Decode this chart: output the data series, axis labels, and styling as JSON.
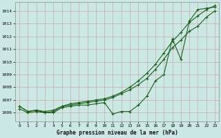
{
  "title": "Graphe pression niveau de la mer (hPa)",
  "bg_color": "#cce8e4",
  "grid_color": "#c8a8a8",
  "line_color": "#1a5c1a",
  "xlim": [
    -0.5,
    23.5
  ],
  "ylim": [
    1005.3,
    1014.7
  ],
  "yticks": [
    1006,
    1007,
    1008,
    1009,
    1010,
    1011,
    1012,
    1013,
    1014
  ],
  "xticks": [
    0,
    1,
    2,
    3,
    4,
    5,
    6,
    7,
    8,
    9,
    10,
    11,
    12,
    13,
    14,
    15,
    16,
    17,
    18,
    19,
    20,
    21,
    22,
    23
  ],
  "series1": [
    1006.3,
    1006.0,
    1006.1,
    1006.0,
    1006.0,
    1006.4,
    1006.5,
    1006.6,
    1006.6,
    1006.7,
    1006.8,
    1005.9,
    1006.1,
    1006.1,
    1006.6,
    1007.3,
    1008.5,
    1009.0,
    1011.8,
    1010.2,
    1013.2,
    1014.1,
    1014.2,
    1014.3
  ],
  "series2": [
    1006.5,
    1006.1,
    1006.2,
    1006.0,
    1006.1,
    1006.5,
    1006.6,
    1006.7,
    1006.8,
    1006.9,
    1007.0,
    1007.2,
    1007.5,
    1007.8,
    1008.2,
    1008.7,
    1009.4,
    1010.2,
    1011.1,
    1011.7,
    1012.4,
    1012.8,
    1013.5,
    1014.0
  ],
  "series3": [
    1006.5,
    1006.1,
    1006.2,
    1006.1,
    1006.2,
    1006.5,
    1006.7,
    1006.8,
    1006.9,
    1007.0,
    1007.1,
    1007.3,
    1007.6,
    1008.0,
    1008.5,
    1009.1,
    1009.8,
    1010.7,
    1011.6,
    1012.3,
    1013.1,
    1013.6,
    1014.1,
    1014.4
  ]
}
